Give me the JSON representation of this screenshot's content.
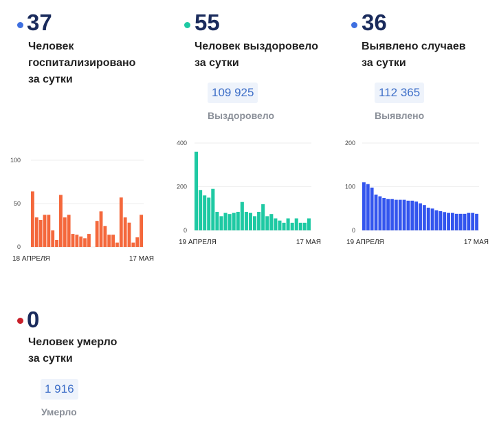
{
  "stats": [
    {
      "value": "37",
      "desc1": "Человек",
      "desc2": "госпитализировано",
      "desc3": "за сутки",
      "color": "#3e6fe0"
    },
    {
      "value": "55",
      "desc1": "Человек выздоровело",
      "desc2": "за сутки",
      "total": "109 925",
      "total_label": "Выздоровело",
      "color": "#1ec9a3"
    },
    {
      "value": "36",
      "desc1": "Выявлено случаев",
      "desc2": "за сутки",
      "total": "112 365",
      "total_label": "Выявлено",
      "color": "#3e6fe0"
    },
    {
      "value": "0",
      "desc1": "Человек умерло",
      "desc2": "за сутки",
      "total": "1 916",
      "total_label": "Умерло",
      "color": "#c8202a"
    }
  ],
  "chart_data": [
    {
      "type": "bar",
      "color": "#f4683c",
      "ylim": [
        0,
        100
      ],
      "yticks": [
        0,
        50,
        100
      ],
      "xstart": "18 АПРЕЛЯ",
      "xend": "17 МАЯ",
      "values": [
        64,
        34,
        31,
        37,
        37,
        19,
        8,
        60,
        34,
        37,
        15,
        14,
        12,
        10,
        15,
        0,
        30,
        41,
        24,
        14,
        14,
        5,
        57,
        34,
        28,
        5,
        11,
        37
      ]
    },
    {
      "type": "bar",
      "color": "#1ec9a3",
      "ylim": [
        0,
        400
      ],
      "yticks": [
        0,
        200,
        400
      ],
      "xstart": "19 АПРЕЛЯ",
      "xend": "17 МАЯ",
      "values": [
        360,
        185,
        160,
        150,
        190,
        85,
        65,
        80,
        75,
        80,
        85,
        130,
        85,
        80,
        65,
        85,
        120,
        65,
        75,
        55,
        45,
        35,
        55,
        35,
        55,
        35,
        35,
        55
      ]
    },
    {
      "type": "bar",
      "color": "#3355ee",
      "ylim": [
        0,
        200
      ],
      "yticks": [
        0,
        100,
        200
      ],
      "xstart": "19 АПРЕЛЯ",
      "xend": "17 МАЯ",
      "values": [
        110,
        106,
        98,
        82,
        78,
        74,
        72,
        72,
        70,
        70,
        70,
        68,
        68,
        66,
        62,
        58,
        52,
        50,
        46,
        44,
        42,
        40,
        40,
        38,
        38,
        38,
        40,
        40,
        38
      ]
    }
  ]
}
